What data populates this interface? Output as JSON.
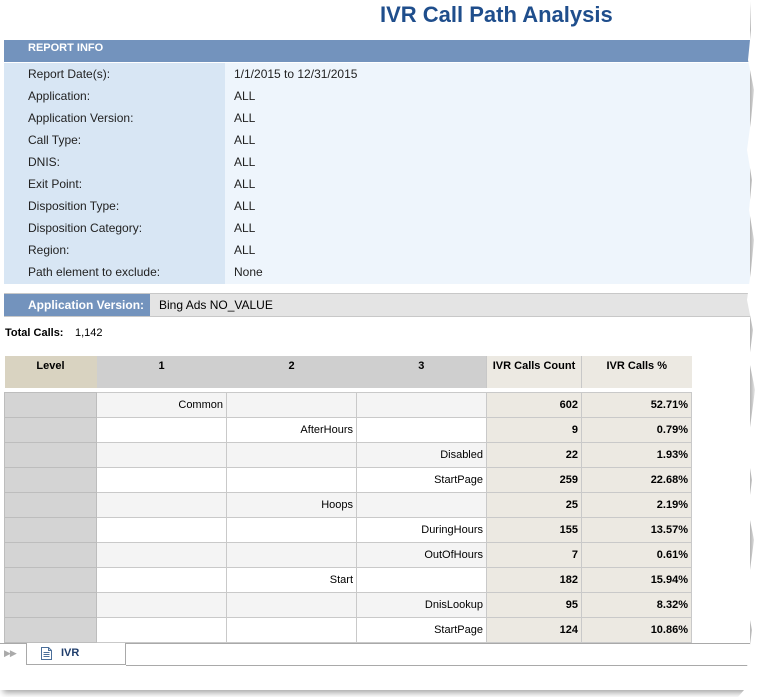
{
  "report": {
    "title": "IVR Call Path Analysis"
  },
  "report_info": {
    "header": "REPORT INFO",
    "rows": [
      {
        "label": "Report Date(s):",
        "value": "1/1/2015  to  12/31/2015"
      },
      {
        "label": "Application:",
        "value": "ALL"
      },
      {
        "label": "Application Version:",
        "value": "ALL"
      },
      {
        "label": "Call Type:",
        "value": "ALL"
      },
      {
        "label": "DNIS:",
        "value": "ALL"
      },
      {
        "label": "Exit Point:",
        "value": "ALL"
      },
      {
        "label": "Disposition Type:",
        "value": "ALL"
      },
      {
        "label": "Disposition Category:",
        "value": "ALL"
      },
      {
        "label": "Region:",
        "value": "ALL"
      },
      {
        "label": "Path element to exclude:",
        "value": "None"
      }
    ]
  },
  "application_version": {
    "label": "Application Version:",
    "value": "Bing Ads NO_VALUE"
  },
  "totals": {
    "label": "Total Calls:",
    "value": "1,142"
  },
  "grid": {
    "headers": [
      "Level",
      "1",
      "2",
      "3",
      "IVR Calls Count",
      "IVR Calls %"
    ],
    "rows": [
      {
        "l1": "Common",
        "l2": "",
        "l3": "",
        "count": "602",
        "pct": "52.71%"
      },
      {
        "l1": "",
        "l2": "AfterHours",
        "l3": "",
        "count": "9",
        "pct": "0.79%"
      },
      {
        "l1": "",
        "l2": "",
        "l3": "Disabled",
        "count": "22",
        "pct": "1.93%"
      },
      {
        "l1": "",
        "l2": "",
        "l3": "StartPage",
        "count": "259",
        "pct": "22.68%"
      },
      {
        "l1": "",
        "l2": "Hoops",
        "l3": "",
        "count": "25",
        "pct": "2.19%"
      },
      {
        "l1": "",
        "l2": "",
        "l3": "DuringHours",
        "count": "155",
        "pct": "13.57%"
      },
      {
        "l1": "",
        "l2": "",
        "l3": "OutOfHours",
        "count": "7",
        "pct": "0.61%"
      },
      {
        "l1": "",
        "l2": "Start",
        "l3": "",
        "count": "182",
        "pct": "15.94%"
      },
      {
        "l1": "",
        "l2": "",
        "l3": "DnisLookup",
        "count": "95",
        "pct": "8.32%"
      },
      {
        "l1": "",
        "l2": "",
        "l3": "StartPage",
        "count": "124",
        "pct": "10.86%"
      }
    ]
  },
  "sheet_tabs": {
    "nav_glyph": "▶▶",
    "active_tab": "IVR",
    "icon": "document-icon"
  },
  "colors": {
    "title": "#1f4e8c",
    "header_band": "#7393bd",
    "info_bg": "#eef5fc",
    "metric_bg": "#ece9e2"
  }
}
